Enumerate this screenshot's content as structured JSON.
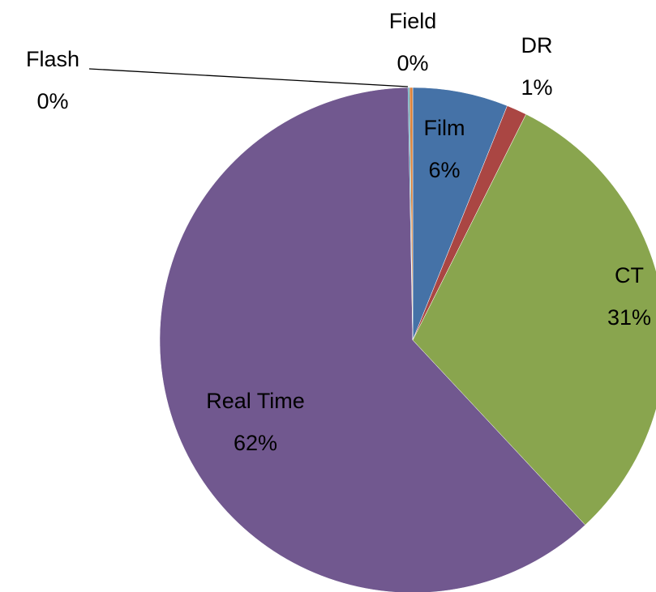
{
  "chart_data": {
    "type": "pie",
    "categories": [
      "Film",
      "DR",
      "CT",
      "Real Time",
      "Flash",
      "Field"
    ],
    "values": [
      6.1,
      1.3,
      30.7,
      61.7,
      0.1,
      0.2
    ],
    "value_labels": [
      "6%",
      "1%",
      "31%",
      "62%",
      "0%",
      "0%"
    ],
    "colors": [
      "#4572a7",
      "#aa4643",
      "#89a54e",
      "#71588f",
      "#4198af",
      "#db843d"
    ]
  }
}
